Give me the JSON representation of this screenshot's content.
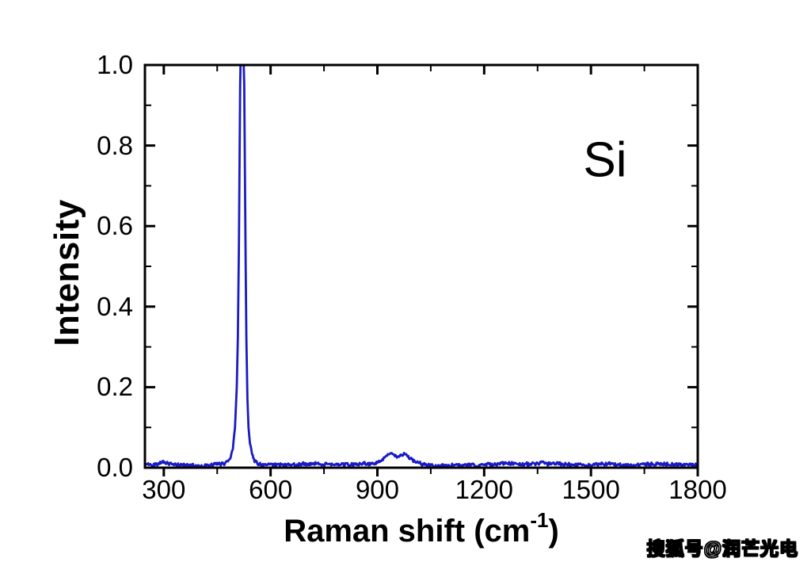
{
  "figure": {
    "background": "#ffffff",
    "axis_color": "#000000",
    "text_color": "#000000"
  },
  "annotation": {
    "text": "Si"
  },
  "watermark": {
    "text": "搜狐号@润芒光电"
  },
  "chart_data": {
    "type": "line",
    "title": "",
    "xlabel": "Raman shift (cm⁻¹)",
    "xlabel_parts": {
      "main": "Raman shift (cm",
      "sup": "-1",
      "close": ")"
    },
    "ylabel": "Intensity",
    "xlim": [
      247,
      1800
    ],
    "ylim": [
      0,
      1
    ],
    "grid": false,
    "legend": "none",
    "x_major_ticks": [
      300,
      600,
      900,
      1200,
      1500,
      1800
    ],
    "x_minor_ticks": [
      450,
      750,
      1050,
      1350,
      1650
    ],
    "x_tick_labels": [
      "300",
      "600",
      "900",
      "1200",
      "1500",
      "1800"
    ],
    "y_major_ticks": [
      0,
      0.2,
      0.4,
      0.6,
      0.8,
      1
    ],
    "y_minor_ticks": [
      0.1,
      0.3,
      0.5,
      0.7,
      0.9
    ],
    "y_tick_labels": [
      "0.0",
      "0.2",
      "0.4",
      "0.6",
      "0.8",
      "1.0"
    ],
    "line_color": "#1a1ac4",
    "line_width": 2.8,
    "noise_amplitude": 0.004,
    "features": [
      {
        "center": 520,
        "height": 1.0,
        "note": "main Si peak, clipped at top of axis"
      },
      {
        "center": 960,
        "height": 0.03,
        "note": "broad second-order band ~900-1050"
      },
      {
        "center": 300,
        "height": 0.018,
        "note": "small bump near 300"
      }
    ],
    "series": [
      {
        "name": "Si",
        "points": [
          [
            247,
            0.008
          ],
          [
            260,
            0.008
          ],
          [
            270,
            0.008
          ],
          [
            280,
            0.01
          ],
          [
            290,
            0.014
          ],
          [
            298,
            0.018
          ],
          [
            306,
            0.014
          ],
          [
            315,
            0.01
          ],
          [
            330,
            0.008
          ],
          [
            350,
            0.007
          ],
          [
            380,
            0.006
          ],
          [
            410,
            0.006
          ],
          [
            440,
            0.007
          ],
          [
            460,
            0.008
          ],
          [
            470,
            0.01
          ],
          [
            480,
            0.016
          ],
          [
            488,
            0.028
          ],
          [
            494,
            0.05
          ],
          [
            500,
            0.1
          ],
          [
            505,
            0.2
          ],
          [
            508,
            0.32
          ],
          [
            511,
            0.55
          ],
          [
            513,
            0.78
          ],
          [
            514.5,
            0.95
          ],
          [
            515.5,
            1.0
          ],
          [
            524.5,
            1.0
          ],
          [
            526,
            0.95
          ],
          [
            528,
            0.72
          ],
          [
            530,
            0.5
          ],
          [
            532,
            0.32
          ],
          [
            535,
            0.17
          ],
          [
            538,
            0.1
          ],
          [
            542,
            0.06
          ],
          [
            548,
            0.035
          ],
          [
            555,
            0.02
          ],
          [
            565,
            0.012
          ],
          [
            580,
            0.008
          ],
          [
            600,
            0.007
          ],
          [
            620,
            0.007
          ],
          [
            650,
            0.008
          ],
          [
            680,
            0.01
          ],
          [
            710,
            0.01
          ],
          [
            740,
            0.009
          ],
          [
            770,
            0.008
          ],
          [
            800,
            0.008
          ],
          [
            830,
            0.007
          ],
          [
            860,
            0.008
          ],
          [
            880,
            0.008
          ],
          [
            900,
            0.01
          ],
          [
            912,
            0.016
          ],
          [
            922,
            0.024
          ],
          [
            935,
            0.03
          ],
          [
            945,
            0.028
          ],
          [
            955,
            0.026
          ],
          [
            965,
            0.03
          ],
          [
            975,
            0.032
          ],
          [
            985,
            0.028
          ],
          [
            995,
            0.018
          ],
          [
            1005,
            0.012
          ],
          [
            1020,
            0.009
          ],
          [
            1040,
            0.007
          ],
          [
            1080,
            0.006
          ],
          [
            1100,
            0.007
          ],
          [
            1150,
            0.008
          ],
          [
            1200,
            0.008
          ],
          [
            1250,
            0.009
          ],
          [
            1300,
            0.008
          ],
          [
            1350,
            0.008
          ],
          [
            1400,
            0.009
          ],
          [
            1450,
            0.008
          ],
          [
            1500,
            0.008
          ],
          [
            1550,
            0.009
          ],
          [
            1600,
            0.008
          ],
          [
            1650,
            0.008
          ],
          [
            1700,
            0.009
          ],
          [
            1750,
            0.008
          ],
          [
            1800,
            0.008
          ]
        ]
      }
    ]
  }
}
